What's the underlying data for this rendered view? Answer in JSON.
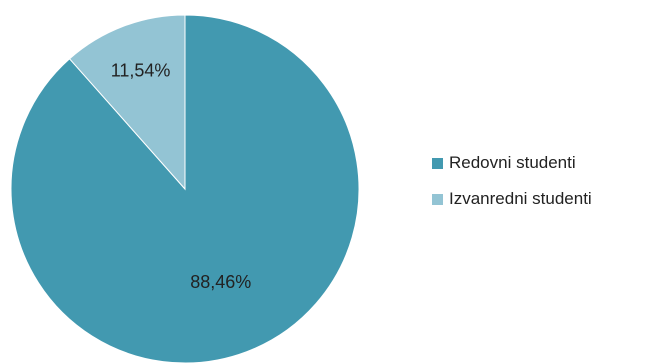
{
  "chart_data": {
    "type": "pie",
    "title": "",
    "categories": [
      "Redovni studenti",
      "Izvanredni studenti"
    ],
    "values": [
      88.46,
      11.54
    ],
    "labels": [
      "88,46%",
      "11,54%"
    ],
    "colors": [
      "#4299b0",
      "#93c4d4"
    ],
    "start_angle_deg": 0,
    "direction": "clockwise",
    "legend_position": "right"
  }
}
